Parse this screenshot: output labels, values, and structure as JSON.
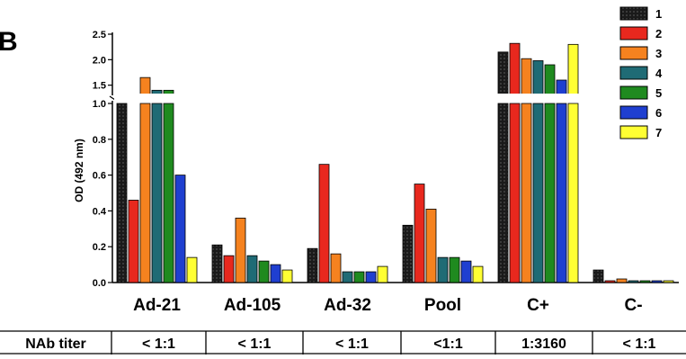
{
  "panel_letter": "B",
  "chart_data": {
    "type": "bar",
    "ylabel": "OD (492 nm)",
    "y_axis_lower": {
      "range": [
        0,
        1.0
      ],
      "ticks": [
        "0.0",
        "0.2",
        "0.4",
        "0.6",
        "0.8",
        "1.0"
      ]
    },
    "y_axis_upper": {
      "range": [
        1.3,
        2.5
      ],
      "ticks": [
        "1.5",
        "2.0",
        "2.5"
      ]
    },
    "axis_break": true,
    "categories": [
      "Ad-21",
      "Ad-105",
      "Ad-32",
      "Pool",
      "C+",
      "C-"
    ],
    "legend_position": "top-right",
    "series": [
      {
        "name": "1",
        "color": "#1a1a1a",
        "values": [
          1.0,
          0.21,
          0.19,
          0.32,
          2.15,
          0.07
        ]
      },
      {
        "name": "2",
        "color": "#e8281e",
        "values": [
          0.46,
          0.15,
          0.66,
          0.55,
          2.32,
          0.01
        ]
      },
      {
        "name": "3",
        "color": "#f5821f",
        "values": [
          1.65,
          0.36,
          0.16,
          0.41,
          2.02,
          0.02
        ]
      },
      {
        "name": "4",
        "color": "#1f6b75",
        "values": [
          1.4,
          0.15,
          0.06,
          0.14,
          1.98,
          0.01
        ]
      },
      {
        "name": "5",
        "color": "#1f8a1f",
        "values": [
          1.4,
          0.12,
          0.06,
          0.14,
          1.9,
          0.01
        ]
      },
      {
        "name": "6",
        "color": "#1f3fd0",
        "values": [
          0.6,
          0.1,
          0.06,
          0.12,
          1.6,
          0.01
        ]
      },
      {
        "name": "7",
        "color": "#ffff33",
        "values": [
          0.14,
          0.07,
          0.09,
          0.09,
          2.3,
          0.01
        ]
      }
    ]
  },
  "table": {
    "header": "NAb titer",
    "cells": [
      "< 1:1",
      "< 1:1",
      "< 1:1",
      "<1:1",
      "1:3160",
      "< 1:1"
    ]
  }
}
